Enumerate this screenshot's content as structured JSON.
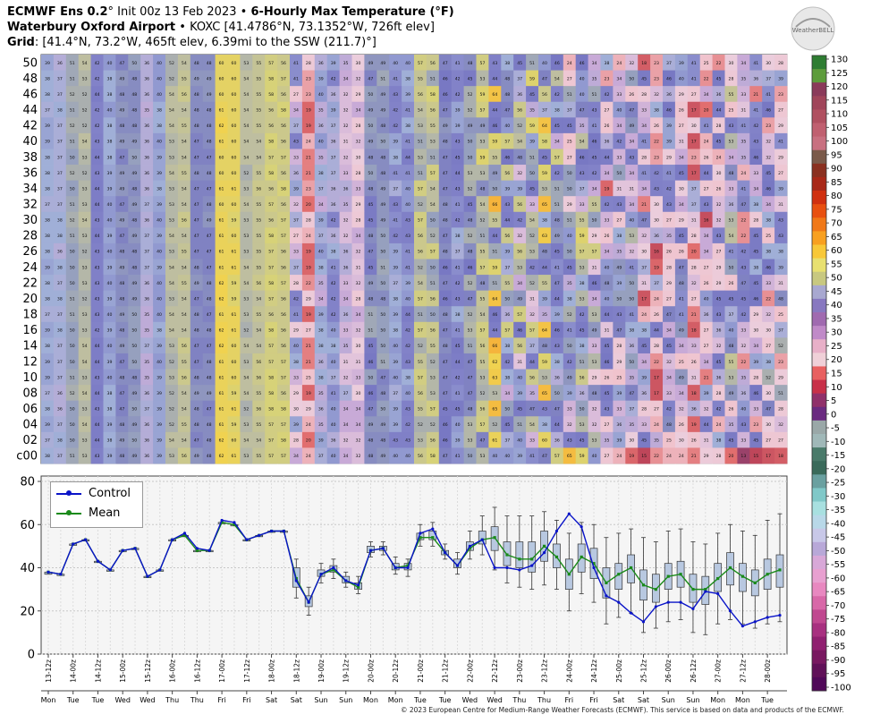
{
  "header": {
    "line1_model": "ECMWF Ens 0.2",
    "line1_deg": "°",
    "line1_init": "Init 00z 13 Feb 2023 •",
    "line1_product": "6-Hourly Max Temperature (°F)",
    "line2_site": "Waterbury Oxford Airport",
    "line2_rest": "• KOXC [41.4786°N, 73.1352°W, 726ft elev]",
    "line3_label": "Grid",
    "line3_rest": ": [41.4°N, 73.2°W, 465ft elev, 6.39mi to the SSW (211.7)°]"
  },
  "logo_text": "WeatherBELL",
  "credit": "© 2023 European Centre for Medium-Range Weather Forecasts (ECMWF). This service is based on data and products of the ECMWF.",
  "colors": {
    "control": "#0a14c8",
    "mean": "#1a8a1a",
    "box_fill": "#b8c8e0"
  },
  "colorbar": {
    "ticks": [
      "130",
      "125",
      "120",
      "115",
      "110",
      "105",
      "100",
      "95",
      "90",
      "85",
      "80",
      "75",
      "70",
      "65",
      "60",
      "55",
      "50",
      "45",
      "40",
      "35",
      "30",
      "25",
      "20",
      "15",
      "10",
      "5",
      "0",
      "-5",
      "-10",
      "-15",
      "-20",
      "-25",
      "-30",
      "-35",
      "-40",
      "-45",
      "-50",
      "-55",
      "-60",
      "-65",
      "-70",
      "-75",
      "-80",
      "-85",
      "-90",
      "-95",
      "-100"
    ],
    "colors": [
      "#2e7d32",
      "#5d9c3c",
      "#8a3a5a",
      "#a0455a",
      "#b05060",
      "#c06070",
      "#c87080",
      "#7a5a4a",
      "#8a3020",
      "#a82818",
      "#d03010",
      "#e85010",
      "#f07818",
      "#f8a020",
      "#f8c838",
      "#e8e070",
      "#c8c880",
      "#a8a8d0",
      "#8878c0",
      "#a06ab0",
      "#c08ac8",
      "#e8b0c8",
      "#f0d0d8",
      "#e86060",
      "#c83048",
      "#90306a",
      "#6a2a80",
      "#9aa8a8",
      "#a0b8b8",
      "#4a7a6a",
      "#3a6a5a",
      "#6aa0a0",
      "#80c8c8",
      "#a8e0e0",
      "#b8d8e8",
      "#c8c8e8",
      "#b8a8d8",
      "#d8a8d8",
      "#e8a0d0",
      "#e888c0",
      "#d868a8",
      "#c04890",
      "#a83080",
      "#902070",
      "#781860",
      "#601058",
      "#500858"
    ]
  },
  "chart_data": [
    {
      "type": "heatmap",
      "title": "6-Hourly Max Temperature (°F)",
      "y_members": [
        "50",
        "48",
        "46",
        "44",
        "42",
        "40",
        "38",
        "36",
        "34",
        "32",
        "30",
        "28",
        "26",
        "24",
        "22",
        "20",
        "18",
        "16",
        "14",
        "12",
        "10",
        "08",
        "06",
        "04",
        "02",
        "c00"
      ],
      "x_steps": 60,
      "value_range": [
        -100,
        130
      ],
      "note_values": "Per-member values are printed in each cell; approximated from the image."
    },
    {
      "type": "line",
      "ylim": [
        0,
        80
      ],
      "yticks": [
        "0",
        "20",
        "40",
        "60",
        "80"
      ],
      "grid": true,
      "legend_position": "top-left",
      "series": [
        {
          "name": "Control",
          "values": [
            38,
            37,
            51,
            53,
            43,
            39,
            48,
            49,
            36,
            39,
            53,
            56,
            49,
            48,
            62,
            61,
            53,
            55,
            57,
            57,
            34,
            24,
            37,
            40,
            34,
            32,
            48,
            49,
            40,
            40,
            56,
            58,
            47,
            41,
            50,
            53,
            40,
            40,
            39,
            41,
            47,
            57,
            65,
            59,
            40,
            27,
            24,
            19,
            15,
            22,
            24,
            24,
            21,
            29,
            28,
            20,
            13,
            15,
            17,
            18
          ]
        },
        {
          "name": "Mean",
          "values": [
            38,
            37,
            51,
            53,
            43,
            39,
            48,
            49,
            36,
            39,
            53,
            55,
            48,
            48,
            61,
            60,
            53,
            55,
            57,
            57,
            35,
            24,
            37,
            39,
            34,
            31,
            48,
            49,
            40,
            41,
            54,
            54,
            47,
            41,
            49,
            53,
            54,
            46,
            44,
            44,
            50,
            45,
            37,
            45,
            42,
            33,
            37,
            40,
            32,
            30,
            36,
            37,
            30,
            30,
            35,
            40,
            36,
            33,
            37,
            39
          ]
        }
      ],
      "box_ranges": [
        [
          38,
          37
        ],
        [
          37,
          37
        ],
        [
          51,
          51
        ],
        [
          53,
          53
        ],
        [
          43,
          43
        ],
        [
          39,
          39
        ],
        [
          48,
          48
        ],
        [
          49,
          49
        ],
        [
          36,
          36
        ],
        [
          39,
          39
        ],
        [
          53,
          53
        ],
        [
          55,
          55
        ],
        [
          48,
          48
        ],
        [
          48,
          48
        ],
        [
          61,
          61
        ],
        [
          60,
          60
        ],
        [
          53,
          53
        ],
        [
          55,
          55
        ],
        [
          57,
          57
        ],
        [
          57,
          57
        ],
        [
          31,
          40
        ],
        [
          22,
          27
        ],
        [
          36,
          39
        ],
        [
          38,
          41
        ],
        [
          33,
          36
        ],
        [
          30,
          33
        ],
        [
          47,
          50
        ],
        [
          48,
          50
        ],
        [
          39,
          42
        ],
        [
          39,
          42
        ],
        [
          53,
          56
        ],
        [
          53,
          57
        ],
        [
          46,
          48
        ],
        [
          40,
          44
        ],
        [
          48,
          52
        ],
        [
          51,
          57
        ],
        [
          48,
          59
        ],
        [
          41,
          52
        ],
        [
          40,
          52
        ],
        [
          38,
          52
        ],
        [
          43,
          57
        ],
        [
          40,
          51
        ],
        [
          30,
          44
        ],
        [
          38,
          51
        ],
        [
          35,
          49
        ],
        [
          26,
          40
        ],
        [
          30,
          42
        ],
        [
          33,
          46
        ],
        [
          25,
          39
        ],
        [
          24,
          37
        ],
        [
          30,
          42
        ],
        [
          31,
          43
        ],
        [
          24,
          37
        ],
        [
          23,
          36
        ],
        [
          29,
          42
        ],
        [
          32,
          47
        ],
        [
          29,
          42
        ],
        [
          27,
          39
        ],
        [
          30,
          44
        ],
        [
          31,
          46
        ]
      ],
      "whiskers": [
        [
          38,
          37
        ],
        [
          37,
          37
        ],
        [
          51,
          51
        ],
        [
          53,
          53
        ],
        [
          43,
          43
        ],
        [
          39,
          39
        ],
        [
          48,
          48
        ],
        [
          49,
          49
        ],
        [
          36,
          36
        ],
        [
          39,
          39
        ],
        [
          53,
          53
        ],
        [
          55,
          55
        ],
        [
          48,
          48
        ],
        [
          48,
          48
        ],
        [
          61,
          61
        ],
        [
          60,
          60
        ],
        [
          53,
          53
        ],
        [
          55,
          55
        ],
        [
          57,
          57
        ],
        [
          57,
          57
        ],
        [
          26,
          44
        ],
        [
          18,
          31
        ],
        [
          33,
          42
        ],
        [
          35,
          44
        ],
        [
          31,
          38
        ],
        [
          28,
          36
        ],
        [
          45,
          52
        ],
        [
          46,
          52
        ],
        [
          37,
          45
        ],
        [
          36,
          44
        ],
        [
          50,
          60
        ],
        [
          50,
          61
        ],
        [
          44,
          51
        ],
        [
          37,
          47
        ],
        [
          44,
          57
        ],
        [
          46,
          64
        ],
        [
          39,
          68
        ],
        [
          33,
          64
        ],
        [
          31,
          64
        ],
        [
          30,
          64
        ],
        [
          32,
          66
        ],
        [
          30,
          62
        ],
        [
          20,
          56
        ],
        [
          28,
          61
        ],
        [
          24,
          60
        ],
        [
          14,
          54
        ],
        [
          17,
          56
        ],
        [
          19,
          58
        ],
        [
          10,
          54
        ],
        [
          12,
          52
        ],
        [
          15,
          57
        ],
        [
          16,
          58
        ],
        [
          10,
          52
        ],
        [
          9,
          51
        ],
        [
          14,
          56
        ],
        [
          16,
          60
        ],
        [
          14,
          57
        ],
        [
          12,
          55
        ],
        [
          14,
          62
        ],
        [
          15,
          65
        ]
      ],
      "x_ticks": [
        "13-12z",
        "14-00z",
        "14-12z",
        "15-00z",
        "15-12z",
        "16-00z",
        "16-12z",
        "17-00z",
        "17-12z",
        "18-00z",
        "18-12z",
        "19-00z",
        "19-12z",
        "20-00z",
        "20-12z",
        "21-00z",
        "21-12z",
        "22-00z",
        "22-12z",
        "23-00z",
        "23-12z",
        "24-00z",
        "24-12z",
        "25-00z",
        "25-12z",
        "26-00z",
        "26-12z",
        "27-00z",
        "27-12z",
        "28-00z"
      ],
      "day_labels": [
        "Mon",
        "Tue",
        "Tue",
        "Wed",
        "Wed",
        "Thu",
        "Thu",
        "Fri",
        "Fri",
        "Sat",
        "Sat",
        "Sun",
        "Sun",
        "Mon",
        "Mon",
        "Tue",
        "Tue",
        "Wed",
        "Wed",
        "Thu",
        "Thu",
        "Fri",
        "Fri",
        "Sat",
        "Sat",
        "Sun",
        "Sun",
        "Mon",
        "Mon",
        "Tue"
      ]
    }
  ]
}
